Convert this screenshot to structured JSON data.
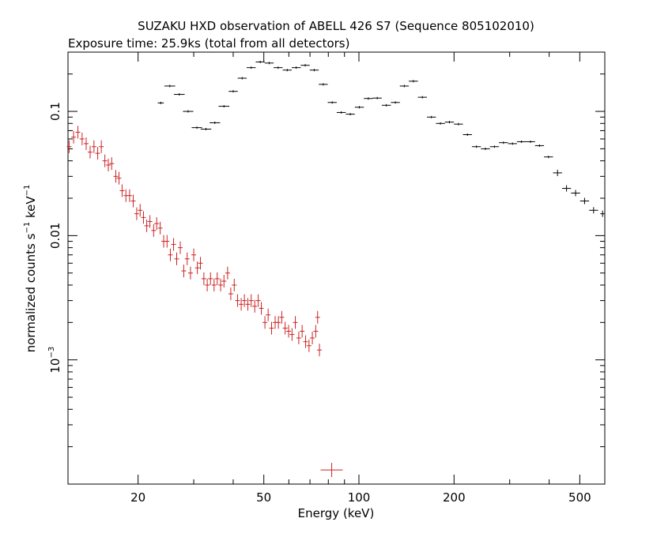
{
  "chart_data": {
    "type": "scatter",
    "title": "SUZAKU HXD observation of ABELL 426 S7 (Sequence 805102010)",
    "subtitle": "Exposure time: 25.9ks (total from all detectors)",
    "xlabel": "Energy (keV)",
    "ylabel_main": "normalized counts s",
    "ylabel_mid": " keV",
    "ylabel_sup": "−1",
    "x_scale": "log",
    "y_scale": "log",
    "xlim": [
      12,
      600
    ],
    "ylim": [
      0.0001,
      0.3
    ],
    "x_ticks": [
      {
        "value": 20,
        "label": "20"
      },
      {
        "value": 50,
        "label": "50"
      },
      {
        "value": 100,
        "label": "100"
      },
      {
        "value": 200,
        "label": "200"
      },
      {
        "value": 500,
        "label": "500"
      }
    ],
    "y_ticks": [
      {
        "value": 0.1,
        "label": "0.1",
        "sup": ""
      },
      {
        "value": 0.01,
        "label": "0.01",
        "sup": ""
      },
      {
        "value": 0.001,
        "label": "10",
        "sup": "−3"
      }
    ],
    "grid": false,
    "legend": "none",
    "colors": {
      "gso": "#000000",
      "pin": "#cc2222"
    },
    "series": [
      {
        "color": "#cc2222",
        "points": [
          [
            12.1,
            0.052
          ],
          [
            12.5,
            0.062
          ],
          [
            12.9,
            0.068
          ],
          [
            13.3,
            0.06
          ],
          [
            13.7,
            0.055
          ],
          [
            14.1,
            0.047
          ],
          [
            14.5,
            0.052
          ],
          [
            14.9,
            0.046
          ],
          [
            15.3,
            0.052
          ],
          [
            15.7,
            0.04
          ],
          [
            16.1,
            0.037
          ],
          [
            16.5,
            0.038
          ],
          [
            17.0,
            0.03
          ],
          [
            17.4,
            0.029
          ],
          [
            17.8,
            0.023
          ],
          [
            18.3,
            0.021
          ],
          [
            18.8,
            0.021
          ],
          [
            19.3,
            0.019
          ],
          [
            19.8,
            0.015
          ],
          [
            20.3,
            0.016
          ],
          [
            20.8,
            0.014
          ],
          [
            21.3,
            0.012
          ],
          [
            21.8,
            0.013
          ],
          [
            22.4,
            0.011
          ],
          [
            22.9,
            0.0125
          ],
          [
            23.5,
            0.0115
          ],
          [
            24.1,
            0.009
          ],
          [
            24.7,
            0.009
          ],
          [
            25.3,
            0.007
          ],
          [
            25.9,
            0.0085
          ],
          [
            26.5,
            0.0065
          ],
          [
            27.2,
            0.008
          ],
          [
            27.9,
            0.0052
          ],
          [
            28.6,
            0.0065
          ],
          [
            29.3,
            0.005
          ],
          [
            30.0,
            0.007
          ],
          [
            30.8,
            0.0055
          ],
          [
            31.5,
            0.006
          ],
          [
            32.3,
            0.0045
          ],
          [
            33.1,
            0.004
          ],
          [
            33.9,
            0.0045
          ],
          [
            34.8,
            0.004
          ],
          [
            35.6,
            0.0045
          ],
          [
            36.5,
            0.004
          ],
          [
            37.4,
            0.0043
          ],
          [
            38.4,
            0.005
          ],
          [
            39.3,
            0.0034
          ],
          [
            40.3,
            0.004
          ],
          [
            41.3,
            0.003
          ],
          [
            42.4,
            0.0028
          ],
          [
            43.4,
            0.003
          ],
          [
            44.5,
            0.0028
          ],
          [
            45.6,
            0.003
          ],
          [
            46.8,
            0.0027
          ],
          [
            48.0,
            0.003
          ],
          [
            49.1,
            0.0026
          ],
          [
            50.4,
            0.002
          ],
          [
            51.6,
            0.0023
          ],
          [
            52.9,
            0.0018
          ],
          [
            54.3,
            0.002
          ],
          [
            55.6,
            0.002
          ],
          [
            57.0,
            0.0022
          ],
          [
            58.4,
            0.0018
          ],
          [
            59.9,
            0.0017
          ],
          [
            61.4,
            0.0016
          ],
          [
            62.9,
            0.002
          ],
          [
            64.5,
            0.0015
          ],
          [
            66.1,
            0.0017
          ],
          [
            67.8,
            0.0014
          ],
          [
            69.5,
            0.0013
          ],
          [
            71.2,
            0.0015
          ],
          [
            73.0,
            0.0017
          ],
          [
            74.0,
            0.0022
          ],
          [
            75.0,
            0.0012
          ],
          [
            82.0,
            0.00013
          ]
        ]
      },
      {
        "color": "#000000",
        "points": [
          [
            23.6,
            0.117
          ],
          [
            25.2,
            0.16
          ],
          [
            27.0,
            0.137
          ],
          [
            28.8,
            0.1
          ],
          [
            30.7,
            0.074
          ],
          [
            32.8,
            0.072
          ],
          [
            35.0,
            0.081
          ],
          [
            37.4,
            0.11
          ],
          [
            40.0,
            0.145
          ],
          [
            42.7,
            0.185
          ],
          [
            45.6,
            0.225
          ],
          [
            48.7,
            0.25
          ],
          [
            52.0,
            0.245
          ],
          [
            55.5,
            0.225
          ],
          [
            59.3,
            0.215
          ],
          [
            63.3,
            0.225
          ],
          [
            67.6,
            0.235
          ],
          [
            72.2,
            0.215
          ],
          [
            77.1,
            0.165
          ],
          [
            82.3,
            0.118
          ],
          [
            87.9,
            0.098
          ],
          [
            93.9,
            0.095
          ],
          [
            100.3,
            0.108
          ],
          [
            107.1,
            0.127
          ],
          [
            114.3,
            0.128
          ],
          [
            122.1,
            0.112
          ],
          [
            130.4,
            0.118
          ],
          [
            139.2,
            0.16
          ],
          [
            148.7,
            0.175
          ],
          [
            158.8,
            0.13
          ],
          [
            169.6,
            0.09
          ],
          [
            181.1,
            0.08
          ],
          [
            193.4,
            0.082
          ],
          [
            206.5,
            0.079
          ],
          [
            220.5,
            0.065
          ],
          [
            235.4,
            0.052
          ],
          [
            251.4,
            0.05
          ],
          [
            268.5,
            0.052
          ],
          [
            286.7,
            0.056
          ],
          [
            306.2,
            0.055
          ],
          [
            326.9,
            0.057
          ],
          [
            349.1,
            0.057
          ],
          [
            372.8,
            0.053
          ],
          [
            398.1,
            0.043
          ],
          [
            425.2,
            0.032
          ],
          [
            454.0,
            0.024
          ],
          [
            484.9,
            0.022
          ],
          [
            517.8,
            0.019
          ],
          [
            552.9,
            0.016
          ],
          [
            590.4,
            0.015
          ]
        ]
      }
    ]
  }
}
